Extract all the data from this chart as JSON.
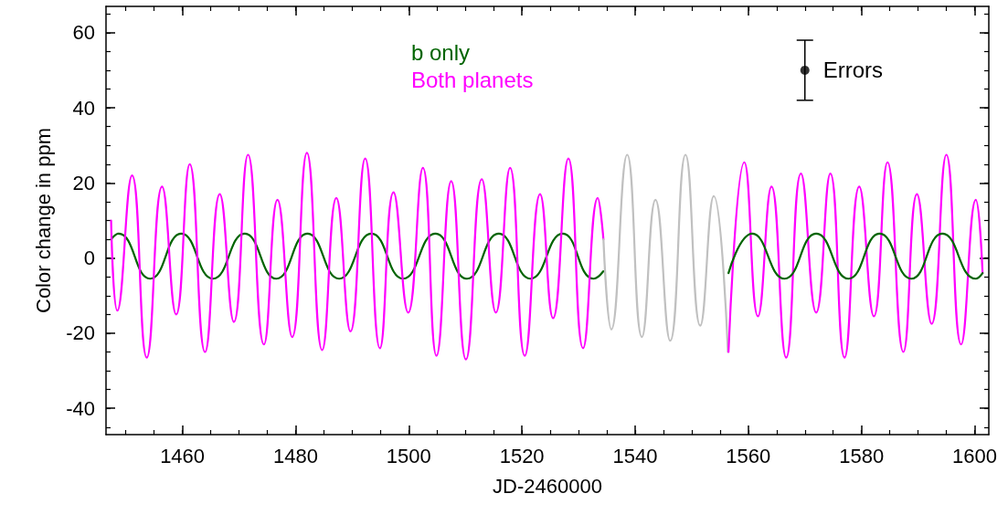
{
  "chart_data": {
    "type": "line",
    "xlabel": "JD-2460000",
    "ylabel": "Color change in ppm",
    "xlim": [
      1446.5,
      1602.5
    ],
    "xticks": [
      1460,
      1480,
      1500,
      1520,
      1540,
      1560,
      1580,
      1600
    ],
    "ylim": [
      -47,
      67
    ],
    "yticks": [
      -40,
      -20,
      0,
      20,
      40,
      60
    ],
    "legend": "top",
    "marker": "none",
    "line_style": "solid",
    "annotations": [
      {
        "text": "Errors",
        "x": 1570,
        "y": 50
      }
    ],
    "series": [
      {
        "name": "b only",
        "color": "#006400",
        "x": [
          1447.4,
          1448.7,
          1454.3,
          1459.8,
          1465.4,
          1471.0,
          1476.6,
          1482.1,
          1487.7,
          1493.4,
          1499.0,
          1504.7,
          1510.3,
          1515.9,
          1521.5,
          1527.2,
          1532.7,
          1534.4
        ],
        "values": [
          5,
          6.5,
          -5.5,
          6.5,
          -5.5,
          6.5,
          -5.5,
          6.5,
          -5.5,
          6.5,
          -5.5,
          6.5,
          -5.5,
          6.5,
          -5.5,
          6.5,
          -5.5,
          -3.5
        ]
      },
      {
        "name": "Both planets",
        "color": "#ff00ff",
        "x": [
          1447.4,
          1448.5,
          1451.1,
          1453.7,
          1456.4,
          1458.9,
          1461.3,
          1464.0,
          1466.6,
          1469.1,
          1471.6,
          1474.4,
          1476.8,
          1479.4,
          1482.0,
          1484.7,
          1487.2,
          1489.7,
          1492.3,
          1494.9,
          1497.3,
          1499.9,
          1502.5,
          1504.9,
          1507.5,
          1510.1,
          1512.9,
          1515.4,
          1517.9,
          1520.5,
          1523.2,
          1525.5,
          1528.2,
          1530.8,
          1533.4,
          1534.4
        ],
        "values": [
          10,
          -14,
          22,
          -26.5,
          19,
          -15,
          25,
          -25,
          17,
          -17,
          27.5,
          -23,
          15.5,
          -21,
          28,
          -24.5,
          16,
          -19.5,
          26.5,
          -24,
          17.5,
          -14.5,
          24,
          -26,
          20.5,
          -27,
          21,
          -14.5,
          24,
          -26,
          17,
          -16,
          26.5,
          -24,
          16,
          5
        ]
      },
      {
        "color": "#c0c0c0",
        "x": [
          1534.4,
          1535.8,
          1538.6,
          1541.2,
          1543.6,
          1546.2,
          1548.9,
          1551.5,
          1553.9,
          1556.4
        ],
        "values": [
          5,
          -19,
          27.5,
          -21,
          15.5,
          -22,
          27.5,
          -18,
          16.5,
          -25
        ]
      },
      {
        "color": "#ff00ff",
        "x": [
          1556.5,
          1559.3,
          1561.7,
          1564.1,
          1566.7,
          1569.3,
          1572.0,
          1574.5,
          1577.0,
          1579.6,
          1582.2,
          1584.6,
          1587.4,
          1589.8,
          1592.4,
          1595.0,
          1597.6,
          1600.2,
          1601.4
        ],
        "values": [
          -25,
          25.5,
          -15.5,
          19,
          -26.5,
          22.5,
          -14.5,
          22.5,
          -26.5,
          19,
          -15.5,
          25.5,
          -25,
          17,
          -17.5,
          27.5,
          -23,
          15.5,
          -4
        ]
      },
      {
        "color": "#006400",
        "x": [
          1556.5,
          1560.7,
          1566.4,
          1572.0,
          1577.7,
          1583.2,
          1588.8,
          1594.3,
          1600.2,
          1601.4
        ],
        "values": [
          -4,
          6.5,
          -5.5,
          6.5,
          -5.5,
          6.5,
          -5.5,
          6.5,
          -5.5,
          -4
        ]
      },
      {
        "type": "scatter",
        "color": "#000000",
        "x": [
          1570
        ],
        "values": [
          50
        ],
        "errors": [
          8
        ],
        "marker": "circle"
      }
    ]
  }
}
